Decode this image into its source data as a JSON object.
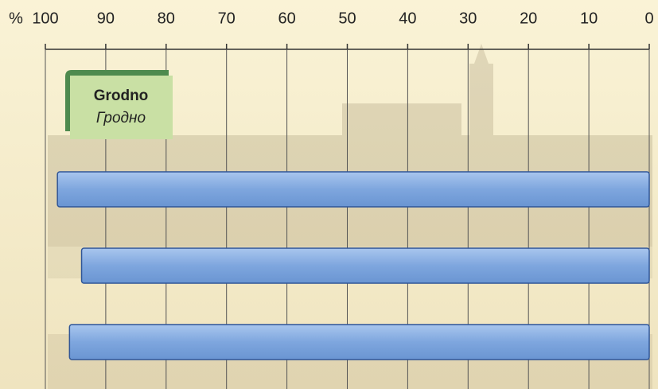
{
  "chart_data": {
    "type": "bar",
    "orientation": "horizontal",
    "title": "Grodno",
    "subtitle": "Гродно",
    "x_label": "%",
    "categories": [
      null,
      null,
      null
    ],
    "values": [
      98,
      94,
      96
    ],
    "color": "#7ea6de",
    "edge_color": "#2f5597",
    "xlim": [
      100,
      0
    ],
    "xticks": [
      100,
      90,
      80,
      70,
      60,
      50,
      40,
      30,
      20,
      10,
      0
    ],
    "grid": true
  }
}
